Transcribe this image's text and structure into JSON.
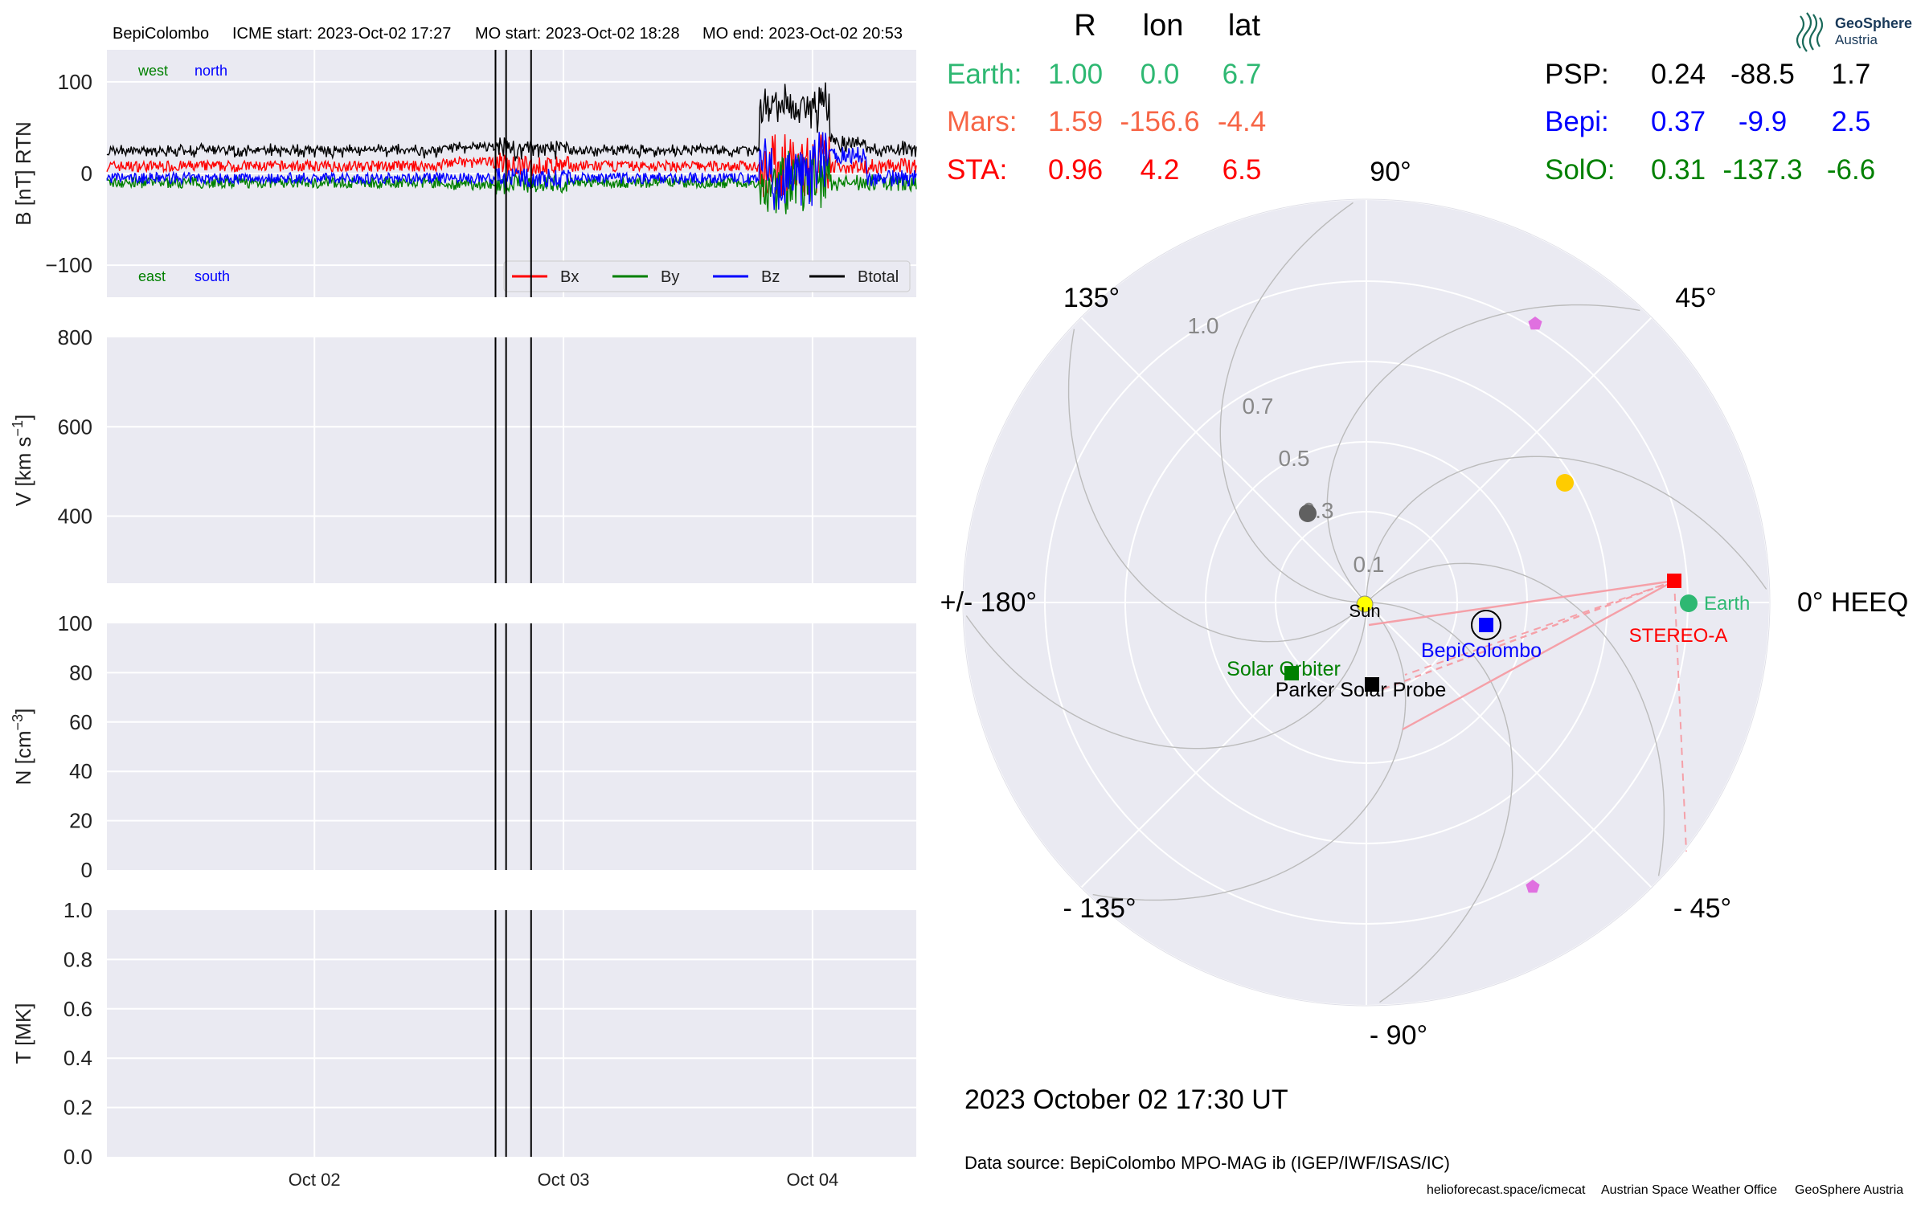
{
  "header": {
    "spacecraft": "BepiColombo",
    "icme_start": "ICME start: 2023-Oct-02 17:27",
    "mo_start": "MO start: 2023-Oct-02 18:28",
    "mo_end": "MO end: 2023-Oct-02 20:53"
  },
  "logo": {
    "line1": "GeoSphere",
    "line2": "Austria"
  },
  "positions_table": {
    "headers": [
      "R",
      "lon",
      "lat"
    ],
    "left_rows": [
      {
        "name": "Earth:",
        "r": "1.00",
        "lon": "0.0",
        "lat": "6.7",
        "color": "#2eb872"
      },
      {
        "name": "Mars:",
        "r": "1.59",
        "lon": "-156.6",
        "lat": "-4.4",
        "color": "#f76546"
      },
      {
        "name": "STA:",
        "r": "0.96",
        "lon": "4.2",
        "lat": "6.5",
        "color": "#ff0000"
      }
    ],
    "right_rows": [
      {
        "name": "PSP:",
        "r": "0.24",
        "lon": "-88.5",
        "lat": "1.7",
        "color": "#000000"
      },
      {
        "name": "Bepi:",
        "r": "0.37",
        "lon": "-9.9",
        "lat": "2.5",
        "color": "#0000ff"
      },
      {
        "name": "SolO:",
        "r": "0.31",
        "lon": "-137.3",
        "lat": "-6.6",
        "color": "#008000"
      }
    ]
  },
  "polar": {
    "angle_labels": [
      "90°",
      "45°",
      "0° HEEQ",
      "- 45°",
      "- 90°",
      "- 135°",
      "+/- 180°",
      "135°"
    ],
    "radial_labels": [
      "0.1",
      "0.3",
      "0.5",
      "0.7",
      "1.0"
    ],
    "labels": {
      "sun": "Sun",
      "earth": "Earth",
      "stereo_a": "STEREO-A",
      "bepi": "BepiColombo",
      "solo": "Solar Orbiter",
      "psp": "Parker Solar Probe"
    },
    "colors": {
      "earth": "#2eb872",
      "sta": "#ff0000",
      "bepi": "#0000ff",
      "solo": "#008000",
      "psp": "#000000",
      "sun": "#ffff00",
      "venus": "#ffcc00",
      "mercury": "#606060",
      "pent": "#e070e0"
    }
  },
  "date_label": "2023 October 02  17:30 UT",
  "data_source": "Data source: BepiColombo MPO-MAG ib (IGEP/IWF/ISAS/IC)",
  "footer": {
    "site": "helioforecast.space/icmecat",
    "office": "Austrian Space Weather Office",
    "org": "GeoSphere Austria"
  },
  "chart_data": [
    {
      "type": "line",
      "panel": "B",
      "ylabel": "B [nT] RTN",
      "ylim": [
        -135,
        135
      ],
      "yticks": [
        -100,
        0,
        100
      ],
      "ytick_labels": [
        "−100",
        "0",
        "100"
      ],
      "x_range_days": [
        "2023-10-01 04:00",
        "2023-10-04 10:00"
      ],
      "xticks": [
        "Oct 02",
        "Oct 03",
        "Oct 04"
      ],
      "corner_labels": {
        "west": "west",
        "north": "north",
        "east": "east",
        "south": "south"
      },
      "legend": [
        "Bx",
        "By",
        "Bz",
        "Btotal"
      ],
      "legend_position": "lower right",
      "series": [
        {
          "name": "Bx",
          "color": "#ff0000"
        },
        {
          "name": "By",
          "color": "#008000"
        },
        {
          "name": "Bz",
          "color": "#0000ff"
        },
        {
          "name": "Btotal",
          "color": "#000000"
        }
      ],
      "vlines": [
        "2023-10-02 17:27",
        "2023-10-02 18:28",
        "2023-10-02 20:53"
      ],
      "grid": true
    },
    {
      "type": "line",
      "panel": "V",
      "ylabel": "V [km s^-1]",
      "ylim": [
        250,
        800
      ],
      "yticks": [
        400,
        600,
        800
      ],
      "ytick_labels": [
        "400",
        "600",
        "800"
      ],
      "series": []
    },
    {
      "type": "line",
      "panel": "N",
      "ylabel": "N [cm^-3]",
      "ylim": [
        0,
        100
      ],
      "yticks": [
        0,
        20,
        40,
        60,
        80,
        100
      ],
      "ytick_labels": [
        "0",
        "20",
        "40",
        "60",
        "80",
        "100"
      ],
      "series": []
    },
    {
      "type": "line",
      "panel": "T",
      "ylabel": "T [MK]",
      "ylim": [
        0,
        1.0
      ],
      "yticks": [
        0,
        0.2,
        0.4,
        0.6,
        0.8,
        1.0
      ],
      "ytick_labels": [
        "0.0",
        "0.2",
        "0.4",
        "0.6",
        "0.8",
        "1.0"
      ],
      "xticks": [
        "Oct 02",
        "Oct 03",
        "Oct 04"
      ],
      "series": []
    }
  ]
}
